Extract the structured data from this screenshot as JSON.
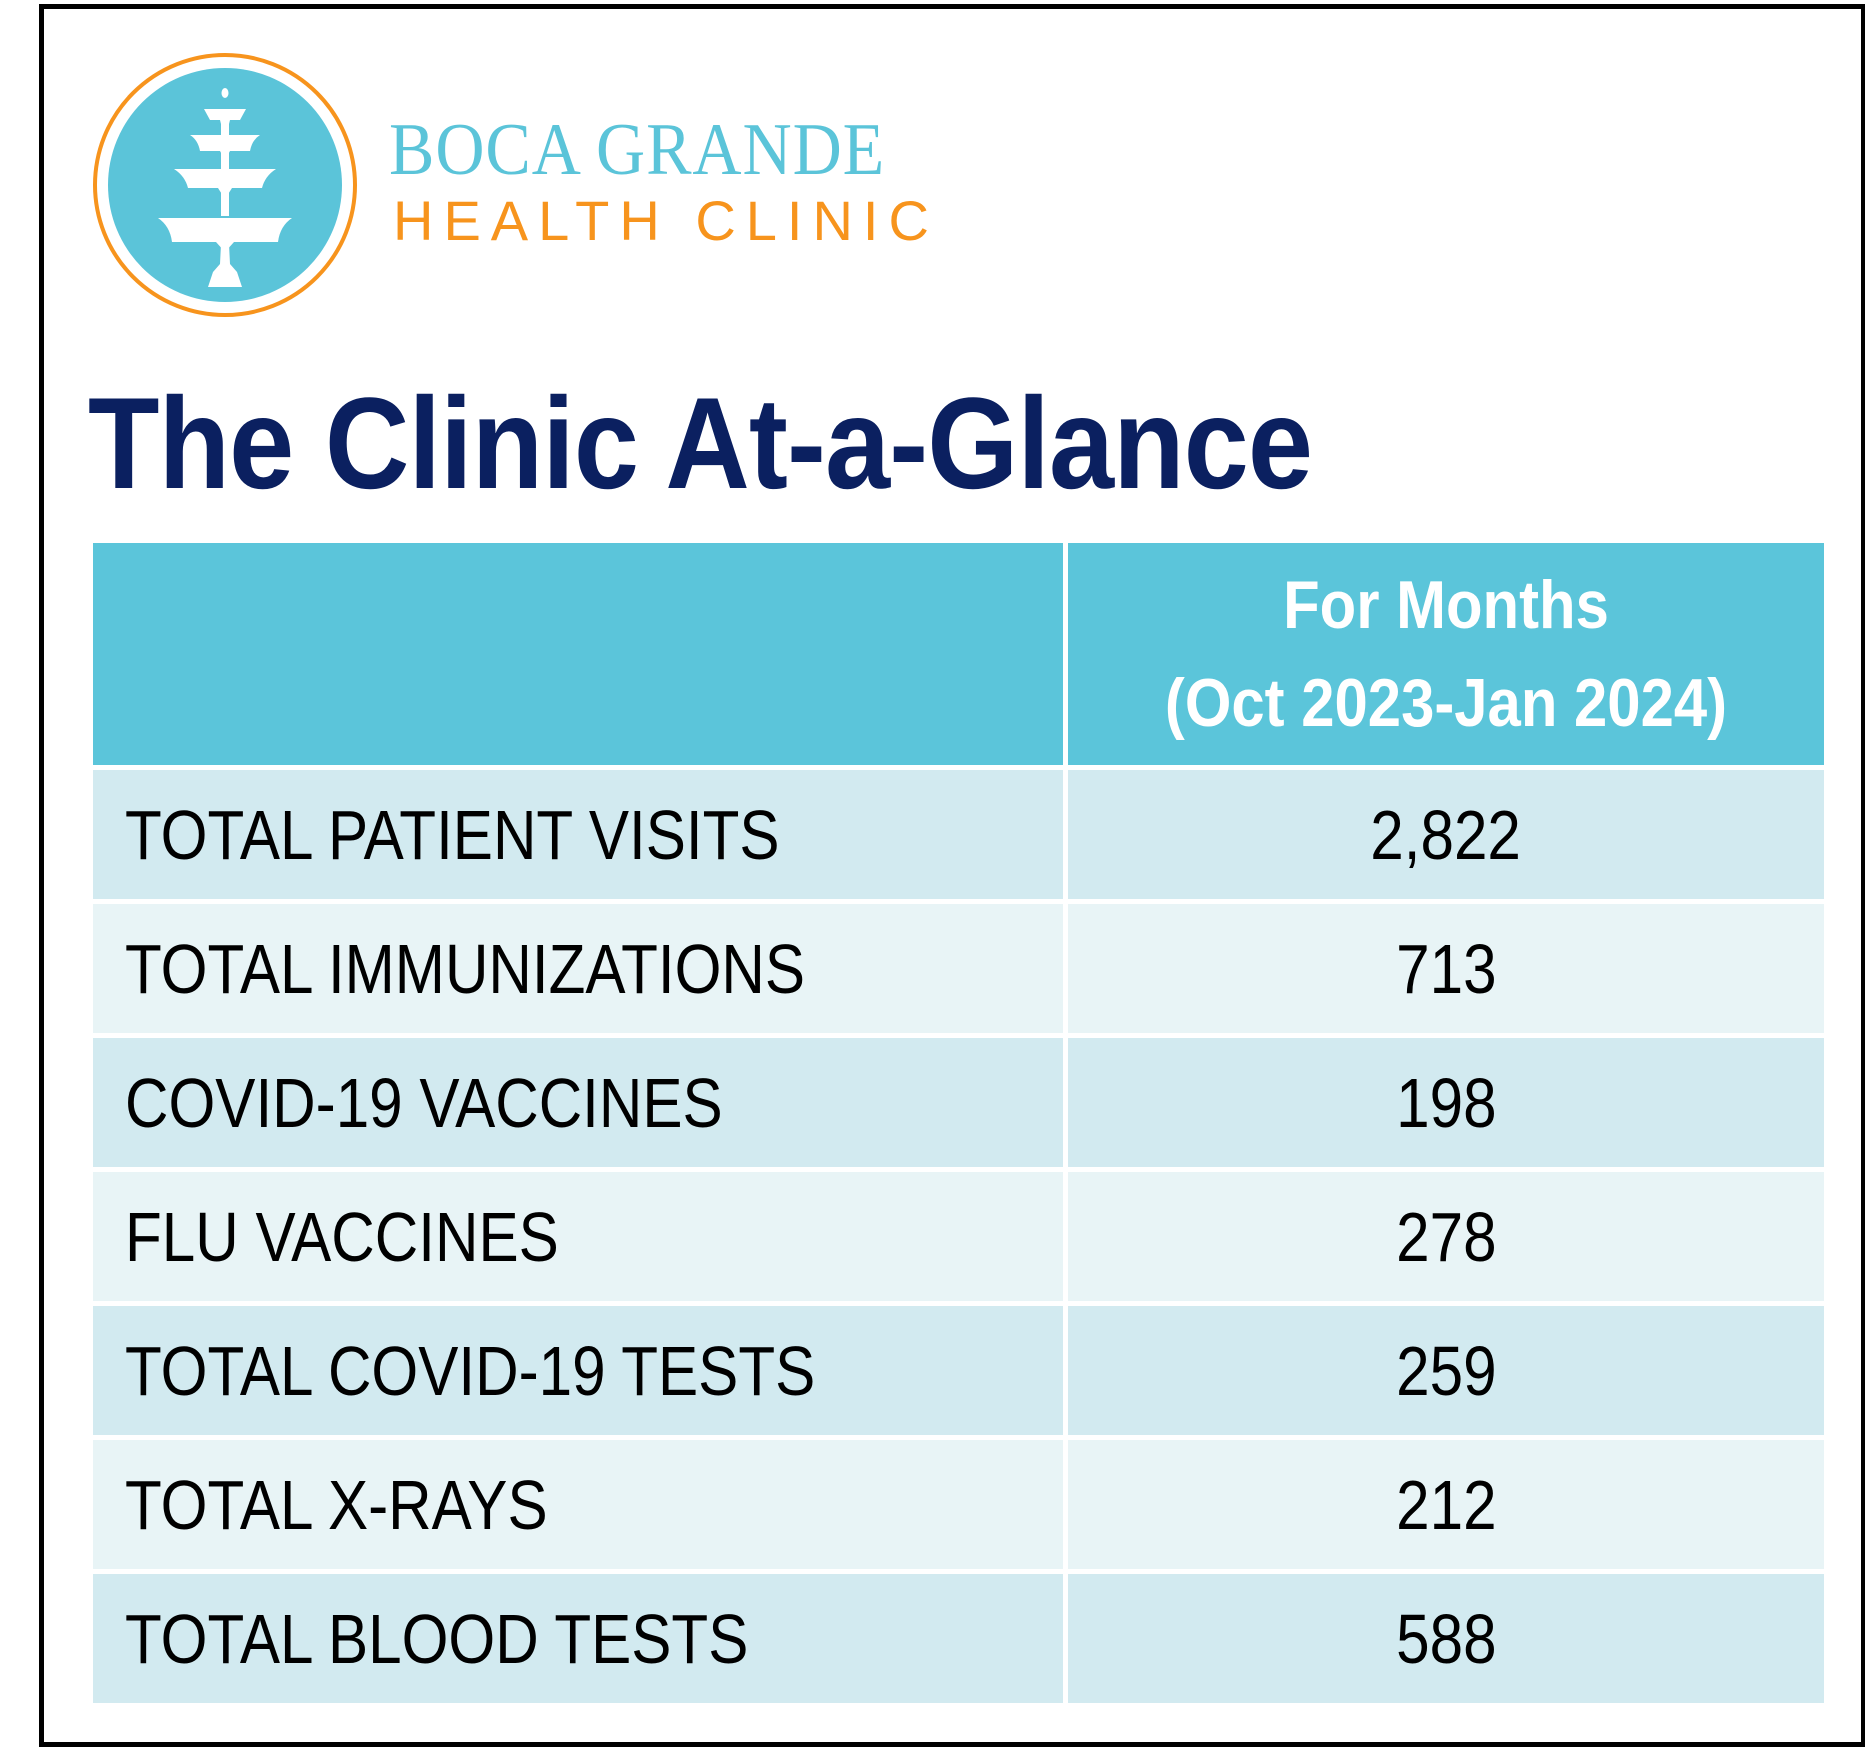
{
  "brand": {
    "line1": "BOCA GRANDE",
    "line2": "HEALTH CLINIC",
    "colors": {
      "teal": "#5bc4d9",
      "orange": "#f7941d"
    },
    "logo_icon": "fountain-icon"
  },
  "title": "The Clinic At-a-Glance",
  "table": {
    "header": {
      "col1": "",
      "col2_line1": "For Months",
      "col2_line2": "(Oct 2023-Jan 2024)"
    },
    "rows": [
      {
        "label": "TOTAL PATIENT VISITS",
        "value": "2,822"
      },
      {
        "label": "TOTAL IMMUNIZATIONS",
        "value": "713"
      },
      {
        "label": "COVID-19 VACCINES",
        "value": "198"
      },
      {
        "label": "FLU VACCINES",
        "value": "278"
      },
      {
        "label": "TOTAL COVID-19 TESTS",
        "value": "259"
      },
      {
        "label": "TOTAL X-RAYS",
        "value": "212"
      },
      {
        "label": "TOTAL BLOOD TESTS",
        "value": "588"
      }
    ],
    "colors": {
      "header": "#5bc5da",
      "row_dark": "#d2eaf0",
      "row_light": "#e8f4f6",
      "title": "#0b2060"
    }
  }
}
